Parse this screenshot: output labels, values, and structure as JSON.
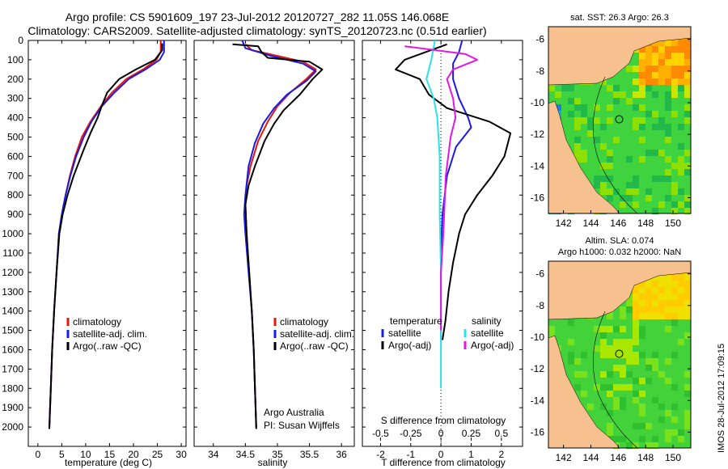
{
  "title_line1": "Argo profile: CS 5901609_197 23-Jul-2012 20120727_282 11.05S 146.068E",
  "title_line2": "Climatology: CARS2009. Satellite-adjusted climatology: synTS_20120723.nc (0.51d earlier)",
  "side_label": "IMOS 28-Jul-2012 17:09:15",
  "colors": {
    "clim": "#e8150c",
    "sat": "#1a1ae6",
    "argo": "#000000",
    "sat_s": "#29e3e8",
    "argo_s": "#e019e0"
  },
  "chart_data": [
    {
      "type": "line",
      "id": "temperature",
      "xlabel": "temperature (deg C)",
      "xlim": [
        -2,
        31
      ],
      "ylim": [
        0,
        2100
      ],
      "x_ticks": [
        "0",
        "5",
        "10",
        "15",
        "20",
        "25",
        "30"
      ],
      "y_ticks": [
        "0",
        "100",
        "200",
        "300",
        "400",
        "500",
        "600",
        "700",
        "800",
        "900",
        "1000",
        "1100",
        "1200",
        "1300",
        "1400",
        "1500",
        "1600",
        "1700",
        "1800",
        "1900",
        "2000"
      ],
      "legend": [
        "climatology",
        "satellite-adj. clim.",
        "Argo(..raw -QC)"
      ],
      "series": [
        {
          "name": "climatology",
          "color": "clim",
          "points": [
            [
              25.7,
              0
            ],
            [
              25.7,
              60
            ],
            [
              24.8,
              100
            ],
            [
              22.0,
              150
            ],
            [
              18.5,
              200
            ],
            [
              15.5,
              270
            ],
            [
              13.2,
              340
            ],
            [
              11.0,
              420
            ],
            [
              9.2,
              500
            ],
            [
              7.8,
              600
            ],
            [
              6.7,
              700
            ],
            [
              5.8,
              800
            ],
            [
              5.0,
              900
            ],
            [
              4.4,
              1000
            ],
            [
              3.9,
              1200
            ],
            [
              3.4,
              1400
            ],
            [
              3.0,
              1600
            ],
            [
              2.7,
              1800
            ],
            [
              2.4,
              2000
            ]
          ]
        },
        {
          "name": "satellite-adj. clim.",
          "color": "sat",
          "points": [
            [
              26.4,
              0
            ],
            [
              26.4,
              60
            ],
            [
              25.5,
              100
            ],
            [
              22.5,
              150
            ],
            [
              19.0,
              200
            ],
            [
              16.0,
              270
            ],
            [
              13.4,
              340
            ],
            [
              11.2,
              420
            ],
            [
              9.6,
              500
            ],
            [
              8.0,
              600
            ],
            [
              6.8,
              700
            ],
            [
              5.8,
              800
            ],
            [
              5.0,
              900
            ],
            [
              4.4,
              1000
            ],
            [
              3.9,
              1200
            ],
            [
              3.4,
              1400
            ],
            [
              3.0,
              1600
            ],
            [
              2.7,
              1800
            ],
            [
              2.4,
              2000
            ]
          ]
        },
        {
          "name": "Argo(..raw -QC)",
          "color": "argo",
          "points": [
            [
              26.0,
              15
            ],
            [
              26.0,
              50
            ],
            [
              24.5,
              100
            ],
            [
              20.5,
              150
            ],
            [
              17.0,
              200
            ],
            [
              14.5,
              270
            ],
            [
              13.5,
              330
            ],
            [
              12.5,
              400
            ],
            [
              11.0,
              480
            ],
            [
              9.5,
              570
            ],
            [
              7.5,
              700
            ],
            [
              6.2,
              800
            ],
            [
              5.2,
              900
            ],
            [
              4.5,
              1000
            ],
            [
              3.9,
              1200
            ],
            [
              3.4,
              1400
            ],
            [
              3.0,
              1600
            ],
            [
              2.7,
              1800
            ],
            [
              2.4,
              2010
            ]
          ]
        }
      ]
    },
    {
      "type": "line",
      "id": "salinity",
      "xlabel": "salinity",
      "xlim": [
        33.7,
        36.2
      ],
      "ylim": [
        0,
        2100
      ],
      "x_ticks": [
        "34",
        "34.5",
        "35",
        "35.5",
        "36"
      ],
      "legend": [
        "climatology",
        "satellite-adj. clim.",
        "Argo(..raw -QC)"
      ],
      "annotation": [
        "Argo Australia",
        "PI: Susan Wijffels"
      ],
      "series": [
        {
          "name": "climatology",
          "color": "clim",
          "points": [
            [
              34.5,
              20
            ],
            [
              34.6,
              50
            ],
            [
              35.0,
              80
            ],
            [
              35.4,
              110
            ],
            [
              35.6,
              150
            ],
            [
              35.45,
              200
            ],
            [
              35.2,
              270
            ],
            [
              35.0,
              340
            ],
            [
              34.85,
              420
            ],
            [
              34.7,
              520
            ],
            [
              34.58,
              650
            ],
            [
              34.52,
              750
            ],
            [
              34.5,
              850
            ],
            [
              34.52,
              1000
            ],
            [
              34.56,
              1200
            ],
            [
              34.6,
              1400
            ],
            [
              34.63,
              1600
            ],
            [
              34.65,
              1800
            ],
            [
              34.67,
              2000
            ]
          ]
        },
        {
          "name": "satellite-adj. clim.",
          "color": "sat",
          "points": [
            [
              34.45,
              0
            ],
            [
              34.5,
              40
            ],
            [
              34.9,
              80
            ],
            [
              35.4,
              120
            ],
            [
              35.6,
              160
            ],
            [
              35.45,
              210
            ],
            [
              35.15,
              280
            ],
            [
              34.95,
              350
            ],
            [
              34.78,
              430
            ],
            [
              34.65,
              530
            ],
            [
              34.55,
              650
            ],
            [
              34.5,
              800
            ],
            [
              34.48,
              900
            ],
            [
              34.5,
              1000
            ],
            [
              34.55,
              1200
            ],
            [
              34.6,
              1400
            ],
            [
              34.63,
              1600
            ],
            [
              34.65,
              1800
            ],
            [
              34.67,
              2000
            ]
          ]
        },
        {
          "name": "Argo(..raw -QC)",
          "color": "argo",
          "points": [
            [
              34.3,
              20
            ],
            [
              34.7,
              30
            ],
            [
              34.75,
              60
            ],
            [
              34.85,
              90
            ],
            [
              35.5,
              110
            ],
            [
              35.7,
              150
            ],
            [
              35.55,
              200
            ],
            [
              35.35,
              280
            ],
            [
              35.1,
              360
            ],
            [
              34.95,
              430
            ],
            [
              34.8,
              520
            ],
            [
              34.65,
              650
            ],
            [
              34.55,
              750
            ],
            [
              34.5,
              850
            ],
            [
              34.52,
              1000
            ],
            [
              34.56,
              1200
            ],
            [
              34.6,
              1400
            ],
            [
              34.63,
              1600
            ],
            [
              34.65,
              1800
            ],
            [
              34.67,
              2010
            ]
          ]
        }
      ]
    },
    {
      "type": "line",
      "id": "difference",
      "xlabel_top": "S difference from climatology",
      "xlabel": "T difference from climatology",
      "xlim": [
        -2.6,
        2.7
      ],
      "ylim": [
        0,
        2100
      ],
      "x_ticks": [
        "-2",
        "-1",
        "0",
        "1",
        "2"
      ],
      "x_ticks_top": [
        "-0.5",
        "-0.25",
        "0",
        "0.25",
        "0.5"
      ],
      "legend_left_title": "temperature",
      "legend_right_title": "salinity",
      "legend_left": [
        "satellite",
        "Argo(-adj)"
      ],
      "legend_right": [
        "satellite",
        "Argo(-adj)"
      ],
      "series": [
        {
          "name": "T satellite",
          "color": "sat",
          "points": [
            [
              0.7,
              0
            ],
            [
              0.6,
              60
            ],
            [
              0.4,
              120
            ],
            [
              0.4,
              200
            ],
            [
              0.6,
              300
            ],
            [
              0.9,
              400
            ],
            [
              1.0,
              450
            ],
            [
              0.5,
              550
            ],
            [
              0.2,
              700
            ],
            [
              0.05,
              900
            ],
            [
              0,
              1100
            ],
            [
              0,
              1400
            ],
            [
              0,
              1550
            ]
          ]
        },
        {
          "name": "T Argo(-adj)",
          "color": "argo",
          "points": [
            [
              0.2,
              20
            ],
            [
              -0.5,
              60
            ],
            [
              -1.2,
              100
            ],
            [
              -1.5,
              150
            ],
            [
              -0.7,
              200
            ],
            [
              -0.4,
              280
            ],
            [
              0.2,
              350
            ],
            [
              1.6,
              420
            ],
            [
              2.3,
              480
            ],
            [
              2.1,
              600
            ],
            [
              1.7,
              700
            ],
            [
              1.2,
              800
            ],
            [
              0.8,
              900
            ],
            [
              0.6,
              1000
            ],
            [
              0.4,
              1150
            ],
            [
              0.25,
              1300
            ],
            [
              0.15,
              1450
            ],
            [
              0.05,
              1550
            ]
          ]
        },
        {
          "name": "S satellite",
          "color": "sat_s",
          "points": [
            [
              -0.05,
              0
            ],
            [
              -0.08,
              100
            ],
            [
              -0.12,
              200
            ],
            [
              -0.06,
              300
            ],
            [
              -0.03,
              400
            ],
            [
              -0.01,
              600
            ],
            [
              -0.01,
              900
            ],
            [
              0,
              1200
            ],
            [
              0,
              1500
            ],
            [
              0,
              1800
            ]
          ]
        },
        {
          "name": "S Argo(-adj)",
          "color": "argo_s",
          "points": [
            [
              -0.3,
              30
            ],
            [
              0.2,
              70
            ],
            [
              0.3,
              100
            ],
            [
              0.1,
              150
            ],
            [
              0.05,
              200
            ],
            [
              0.1,
              300
            ],
            [
              0.12,
              400
            ],
            [
              0.08,
              500
            ],
            [
              0.04,
              700
            ],
            [
              0.02,
              1000
            ],
            [
              0,
              1200
            ],
            [
              0,
              1500
            ]
          ]
        }
      ]
    },
    {
      "type": "heatmap",
      "id": "sst_map",
      "title": "sat. SST: 26.3 Argo: 26.3",
      "x_ticks": [
        "142",
        "144",
        "146",
        "148",
        "150"
      ],
      "y_ticks": [
        "-6",
        "-8",
        "-10",
        "-12",
        "-14",
        "-16"
      ],
      "xlim": [
        140.9,
        151.3
      ],
      "ylim": [
        -17.0,
        -5.2
      ],
      "argo_position": [
        146.07,
        -11.05
      ]
    },
    {
      "type": "heatmap",
      "id": "sla_map",
      "title_line1": "Altim. SLA: 0.074",
      "title_line2": "Argo h1000: 0.032 h2000: NaN",
      "x_ticks": [
        "142",
        "144",
        "146",
        "148",
        "150"
      ],
      "y_ticks": [
        "-6",
        "-8",
        "-10",
        "-12",
        "-14",
        "-16"
      ],
      "xlim": [
        140.9,
        151.3
      ],
      "ylim": [
        -17.0,
        -5.2
      ],
      "argo_position": [
        146.07,
        -11.05
      ]
    }
  ]
}
